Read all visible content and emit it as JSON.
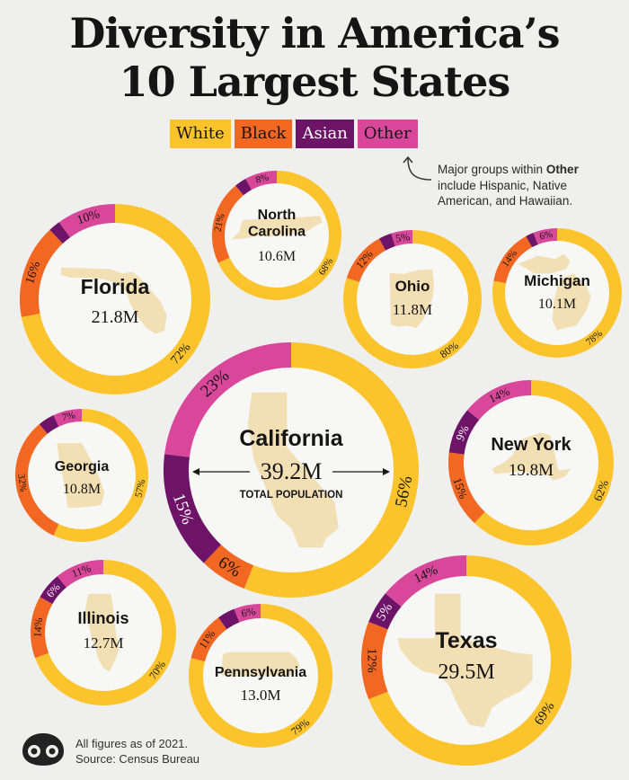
{
  "title": {
    "line1": "Diversity in America’s",
    "line2": "10 Largest States"
  },
  "legend": [
    {
      "label": "White",
      "color": "#fcc42c"
    },
    {
      "label": "Black",
      "color": "#f26722"
    },
    {
      "label": "Asian",
      "color": "#6d1469"
    },
    {
      "label": "Other",
      "color": "#d9479a"
    }
  ],
  "note": {
    "prefix": "Major groups within ",
    "bold": "Other",
    "suffix": " include Hispanic, Native American, and Hawaiian."
  },
  "footer": {
    "line1": "All figures as of 2021.",
    "line2": "Source: Census Bureau"
  },
  "colors": {
    "background": "#efefed",
    "white": "#fcc42c",
    "black": "#f26722",
    "asian": "#6d1469",
    "other": "#d9479a",
    "inner": "#f7f7f5",
    "shape": "#f2dfb4"
  },
  "chart_data": {
    "type": "donut",
    "title": "Diversity in America’s 10 Largest States",
    "categories": [
      "White",
      "Black",
      "Asian",
      "Other"
    ],
    "total_label": "TOTAL POPULATION",
    "states": [
      {
        "name": "California",
        "population": "39.2M",
        "values": {
          "White": 56,
          "Black": 6,
          "Asian": 15,
          "Other": 23
        },
        "labels": {
          "White": "56%",
          "Black": "6%",
          "Asian": "15%",
          "Other": "23%"
        }
      },
      {
        "name": "Texas",
        "population": "29.5M",
        "values": {
          "White": 69,
          "Black": 12,
          "Asian": 5,
          "Other": 14
        },
        "labels": {
          "White": "69%",
          "Black": "12%",
          "Asian": "5%",
          "Other": "14%"
        }
      },
      {
        "name": "Florida",
        "population": "21.8M",
        "values": {
          "White": 72,
          "Black": 16,
          "Asian": 2,
          "Other": 10
        },
        "labels": {
          "White": "72%",
          "Black": "16%",
          "Asian": "",
          "Other": "10%"
        }
      },
      {
        "name": "New York",
        "population": "19.8M",
        "values": {
          "White": 62,
          "Black": 15,
          "Asian": 9,
          "Other": 14
        },
        "labels": {
          "White": "62%",
          "Black": "15%",
          "Asian": "9%",
          "Other": "14%"
        }
      },
      {
        "name": "Pennsylvania",
        "population": "13.0M",
        "values": {
          "White": 79,
          "Black": 11,
          "Asian": 4,
          "Other": 6
        },
        "labels": {
          "White": "79%",
          "Black": "11%",
          "Asian": "",
          "Other": "6%"
        }
      },
      {
        "name": "Illinois",
        "population": "12.7M",
        "values": {
          "White": 70,
          "Black": 14,
          "Asian": 6,
          "Other": 11
        },
        "labels": {
          "White": "70%",
          "Black": "14%",
          "Asian": "6%",
          "Other": "11%"
        }
      },
      {
        "name": "Ohio",
        "population": "11.8M",
        "values": {
          "White": 80,
          "Black": 12,
          "Asian": 3,
          "Other": 5
        },
        "labels": {
          "White": "80%",
          "Black": "12%",
          "Asian": "",
          "Other": "5%"
        }
      },
      {
        "name": "Georgia",
        "population": "10.8M",
        "values": {
          "White": 57,
          "Black": 32,
          "Asian": 4,
          "Other": 7
        },
        "labels": {
          "White": "57%",
          "Black": "32%",
          "Asian": "",
          "Other": "7%"
        }
      },
      {
        "name": "North Carolina",
        "population": "10.6M",
        "values": {
          "White": 68,
          "Black": 21,
          "Asian": 3,
          "Other": 8
        },
        "labels": {
          "White": "68%",
          "Black": "21%",
          "Asian": "",
          "Other": "8%"
        }
      },
      {
        "name": "Michigan",
        "population": "10.1M",
        "values": {
          "White": 78,
          "Black": 14,
          "Asian": 2,
          "Other": 6
        },
        "labels": {
          "White": "78%",
          "Black": "14%",
          "Asian": "",
          "Other": "6%"
        }
      }
    ]
  }
}
